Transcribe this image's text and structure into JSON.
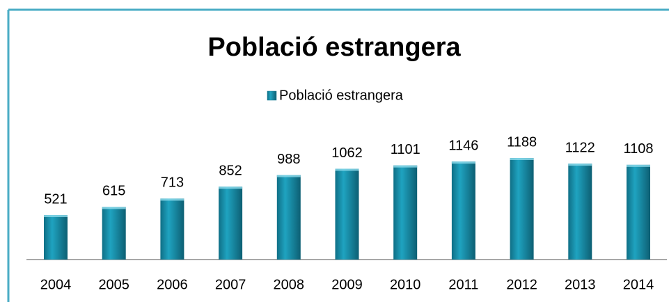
{
  "chart_data": {
    "type": "bar",
    "title": "Població estrangera",
    "categories": [
      "2004",
      "2005",
      "2006",
      "2007",
      "2008",
      "2009",
      "2010",
      "2011",
      "2012",
      "2013",
      "2014"
    ],
    "series": [
      {
        "name": "Població estrangera",
        "color": "#1fa3c0",
        "values": [
          521,
          615,
          713,
          852,
          988,
          1062,
          1101,
          1146,
          1188,
          1122,
          1108
        ]
      }
    ]
  }
}
